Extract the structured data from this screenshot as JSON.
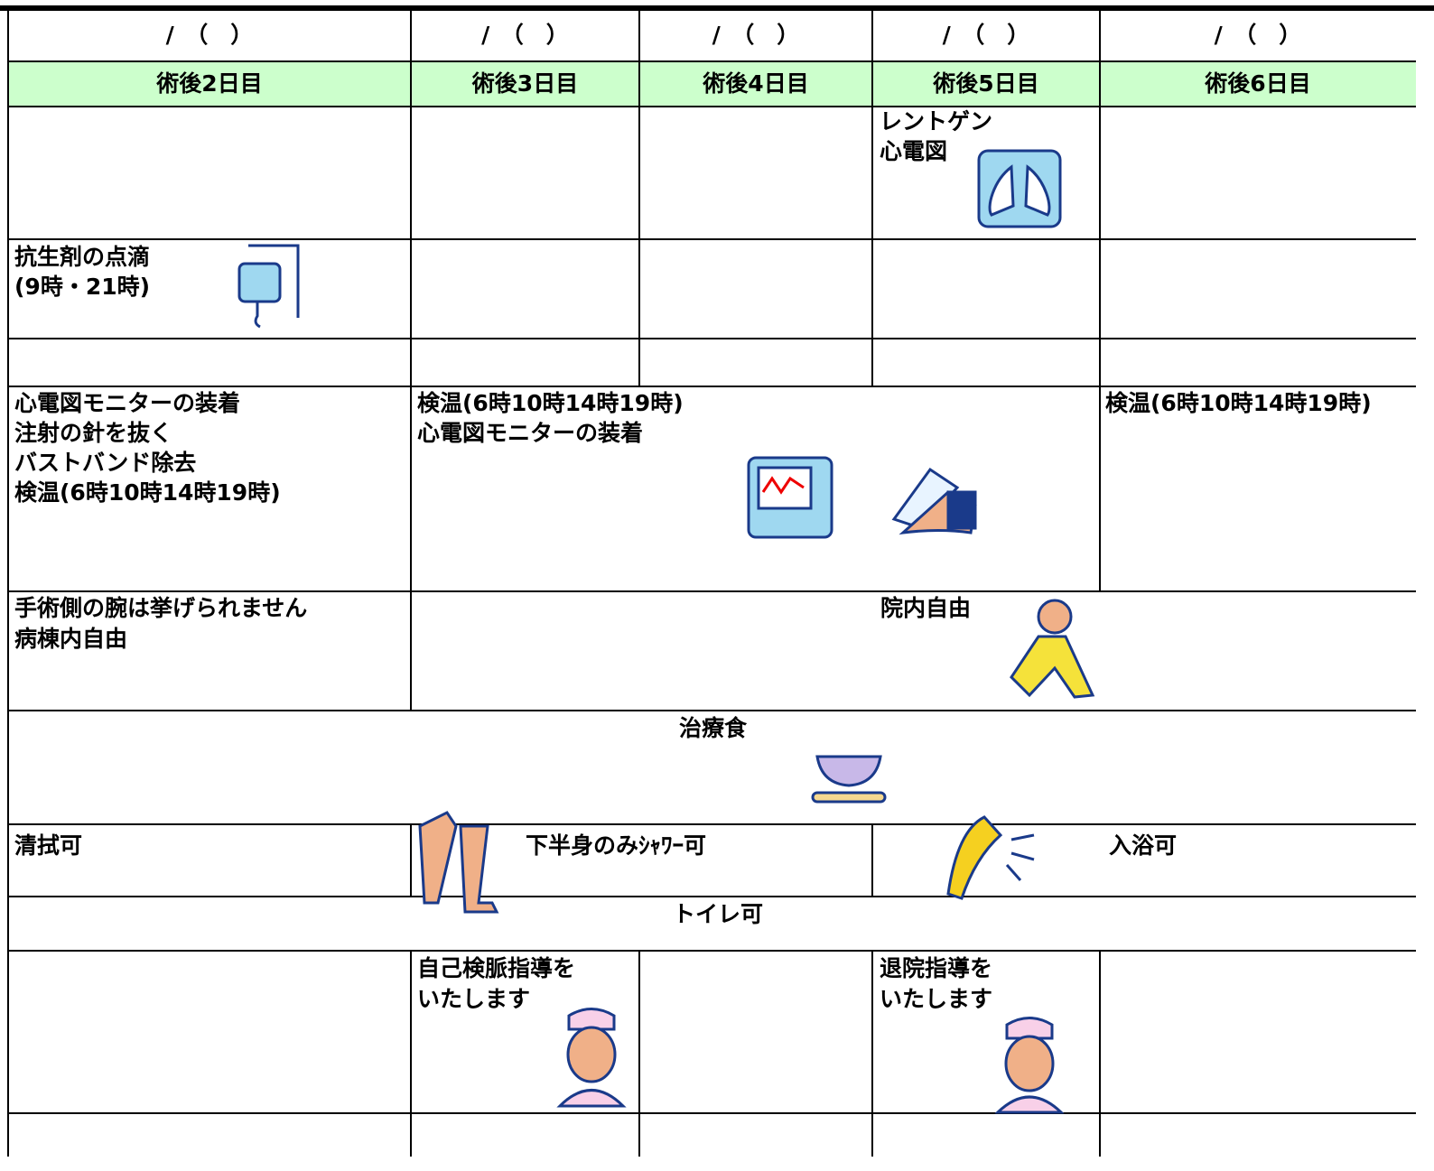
{
  "header": {
    "dates": [
      "/　（　）",
      "/　（　）",
      "/　（　）",
      "/　（　）",
      "/　（　）"
    ],
    "days": [
      "術後2日目",
      "術後3日目",
      "術後4日目",
      "術後5日目",
      "術後6日目"
    ]
  },
  "exam": {
    "day5": [
      "レントゲン",
      "心電図"
    ]
  },
  "drip": {
    "day2": [
      "抗生剤の点滴",
      "(9時・21時)"
    ]
  },
  "observation": {
    "day2": [
      "心電図モニターの装着",
      "注射の針を抜く",
      "バストバンド除去",
      "検温(6時10時14時19時)"
    ],
    "day3to5": [
      "検温(6時10時14時19時)",
      "心電図モニターの装着"
    ],
    "day6": [
      "検温(6時10時14時19時)"
    ]
  },
  "activity": {
    "day2": [
      "手術側の腕は挙げられません",
      "病棟内自由"
    ],
    "day3to6": "院内自由"
  },
  "meal": "治療食",
  "bath": {
    "day2": "清拭可",
    "day3to4": "下半身のみｼｬﾜｰ可",
    "day5to6": "入浴可"
  },
  "toilet": "トイレ可",
  "guidance": {
    "day3": [
      "自己検脈指導を",
      "いたします"
    ],
    "day5": [
      "退院指導を",
      "いたします"
    ]
  }
}
